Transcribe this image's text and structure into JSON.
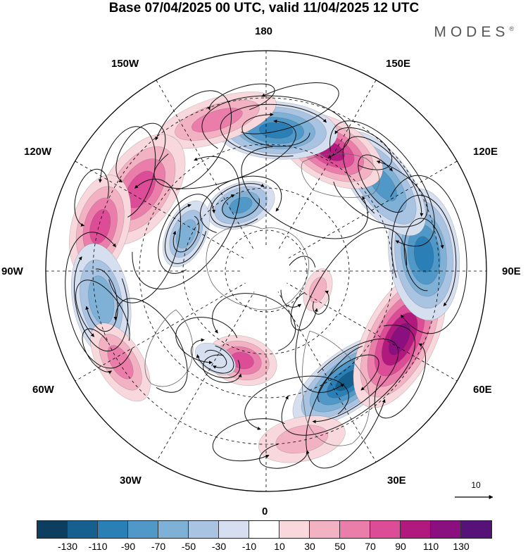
{
  "header": {
    "title": "Base 07/04/2025 00 UTC, valid 11/04/2025 12 UTC",
    "brand": "MODES",
    "brand_mark": "®"
  },
  "map": {
    "projection": "north-polar-stereographic",
    "longitude_labels": {
      "lon_180": "180",
      "lon_150w": "150W",
      "lon_150e": "150E",
      "lon_120w": "120W",
      "lon_120e": "120E",
      "lon_90w": "90W",
      "lon_90e": "90E",
      "lon_60w": "60W",
      "lon_60e": "60E",
      "lon_30w": "30W",
      "lon_30e": "30E",
      "lon_0": "0"
    },
    "anomaly_features": [
      {
        "sign": "negative",
        "value": -130,
        "bearing_deg": 37,
        "dist_frac": 0.62,
        "len_frac": 0.3,
        "wid_frac": 0.13
      },
      {
        "sign": "positive",
        "value": 130,
        "bearing_deg": 63,
        "dist_frac": 0.68,
        "len_frac": 0.34,
        "wid_frac": 0.16
      },
      {
        "sign": "negative",
        "value": -110,
        "bearing_deg": 96,
        "dist_frac": 0.72,
        "len_frac": 0.3,
        "wid_frac": 0.16
      },
      {
        "sign": "negative",
        "value": -90,
        "bearing_deg": 127,
        "dist_frac": 0.66,
        "len_frac": 0.28,
        "wid_frac": 0.13
      },
      {
        "sign": "positive",
        "value": 110,
        "bearing_deg": 152,
        "dist_frac": 0.62,
        "len_frac": 0.26,
        "wid_frac": 0.14
      },
      {
        "sign": "negative",
        "value": -110,
        "bearing_deg": 176,
        "dist_frac": 0.64,
        "len_frac": 0.28,
        "wid_frac": 0.13
      },
      {
        "sign": "positive",
        "value": 70,
        "bearing_deg": 198,
        "dist_frac": 0.72,
        "len_frac": 0.28,
        "wid_frac": 0.1
      },
      {
        "sign": "positive",
        "value": 90,
        "bearing_deg": 237,
        "dist_frac": 0.68,
        "len_frac": 0.28,
        "wid_frac": 0.16
      },
      {
        "sign": "negative",
        "value": -90,
        "bearing_deg": 201,
        "dist_frac": 0.32,
        "len_frac": 0.16,
        "wid_frac": 0.1
      },
      {
        "sign": "negative",
        "value": -70,
        "bearing_deg": 245,
        "dist_frac": 0.4,
        "len_frac": 0.16,
        "wid_frac": 0.09
      },
      {
        "sign": "positive",
        "value": 90,
        "bearing_deg": 255,
        "dist_frac": 0.78,
        "len_frac": 0.24,
        "wid_frac": 0.13
      },
      {
        "sign": "negative",
        "value": -70,
        "bearing_deg": 280,
        "dist_frac": 0.76,
        "len_frac": 0.26,
        "wid_frac": 0.13
      },
      {
        "sign": "positive",
        "value": 70,
        "bearing_deg": 302,
        "dist_frac": 0.78,
        "len_frac": 0.2,
        "wid_frac": 0.1
      },
      {
        "sign": "positive",
        "value": 90,
        "bearing_deg": 345,
        "dist_frac": 0.42,
        "len_frac": 0.16,
        "wid_frac": 0.11
      },
      {
        "sign": "positive",
        "value": 50,
        "bearing_deg": 12,
        "dist_frac": 0.78,
        "len_frac": 0.2,
        "wid_frac": 0.1
      },
      {
        "sign": "positive",
        "value": 50,
        "bearing_deg": 70,
        "dist_frac": 0.25,
        "len_frac": 0.1,
        "wid_frac": 0.06
      },
      {
        "sign": "negative",
        "value": -30,
        "bearing_deg": 330,
        "dist_frac": 0.46,
        "len_frac": 0.1,
        "wid_frac": 0.06
      }
    ],
    "reference_vector": {
      "label": "10"
    }
  },
  "colorbar": {
    "colors": [
      "#0d3e5f",
      "#15608f",
      "#2a7fb6",
      "#4f98c7",
      "#7fb0d6",
      "#a9c3e2",
      "#d5dff0",
      "#ffffff",
      "#f8d8dc",
      "#f3b2c3",
      "#eb7daa",
      "#dc4c97",
      "#b2197f",
      "#8a0f7f",
      "#57127a"
    ],
    "ticks": [
      "-130",
      "-110",
      "-90",
      "-70",
      "-50",
      "-30",
      "-10",
      "10",
      "30",
      "50",
      "70",
      "90",
      "110",
      "130"
    ]
  }
}
